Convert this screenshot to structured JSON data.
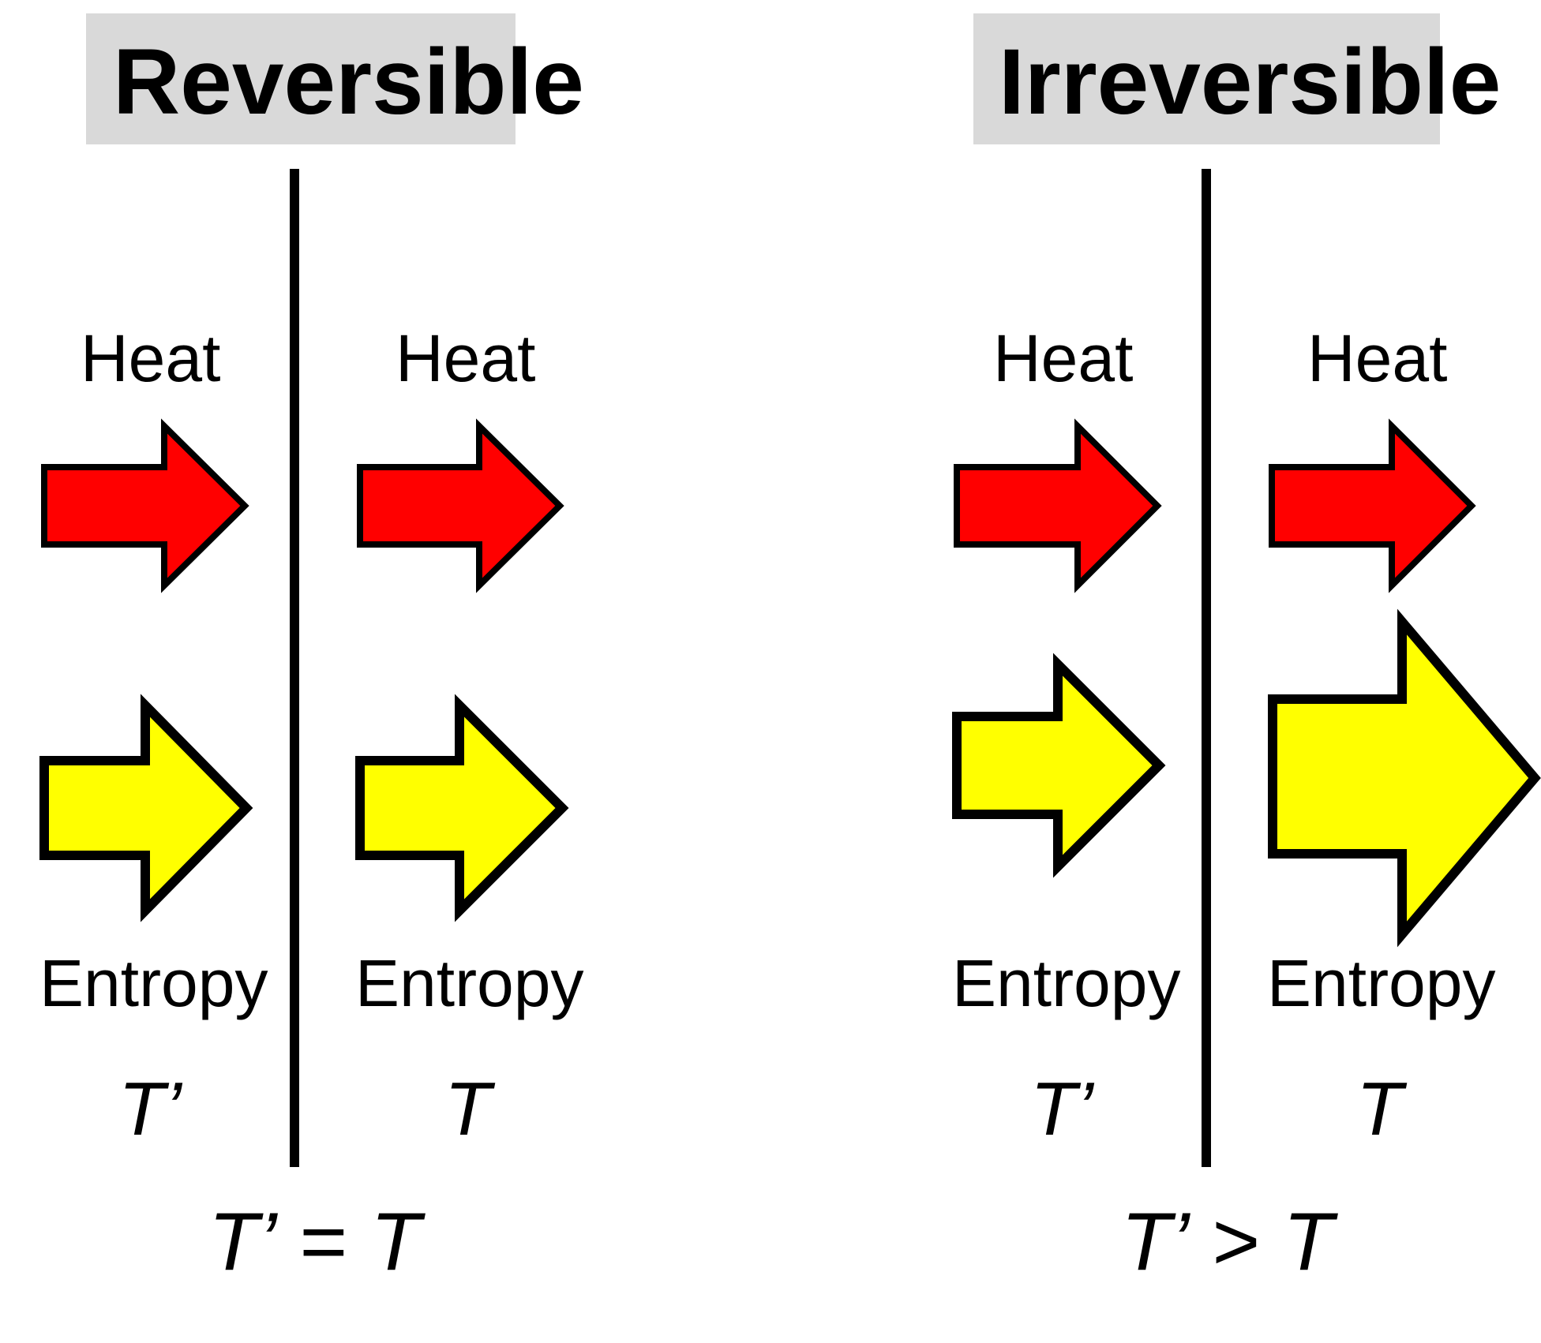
{
  "colors": {
    "heat_arrow": "#ff0000",
    "entropy_arrow": "#ffff00",
    "title_background": "#d9d9d9",
    "outline": "#000000"
  },
  "panels": [
    {
      "title": "Reversible",
      "left_column": {
        "heat_label": "Heat",
        "entropy_label": "Entropy",
        "temperature": "T’"
      },
      "right_column": {
        "heat_label": "Heat",
        "entropy_label": "Entropy",
        "temperature": "T"
      },
      "relation": {
        "lhs": "T’",
        "operator": "=",
        "rhs": "T"
      }
    },
    {
      "title": "Irreversible",
      "left_column": {
        "heat_label": "Heat",
        "entropy_label": "Entropy",
        "temperature": "T’"
      },
      "right_column": {
        "heat_label": "Heat",
        "entropy_label": "Entropy",
        "temperature": "T"
      },
      "relation": {
        "lhs": "T’",
        "operator": ">",
        "rhs": "T"
      }
    }
  ]
}
